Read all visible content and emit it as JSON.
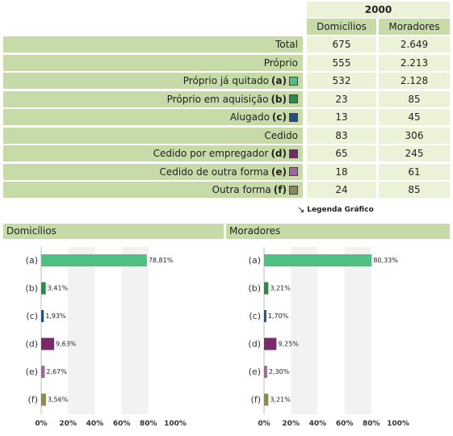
{
  "table": {
    "year": "2000",
    "columns": [
      "Domicílios",
      "Moradores"
    ],
    "rows": [
      {
        "label": "Total",
        "tag": "",
        "swatch": "",
        "domicilios": "675",
        "moradores": "2.649"
      },
      {
        "label": "Próprio",
        "tag": "",
        "swatch": "",
        "domicilios": "555",
        "moradores": "2.213"
      },
      {
        "label": "Próprio já quitado",
        "tag": "(a)",
        "swatch": "#4fc081",
        "domicilios": "532",
        "moradores": "2.128"
      },
      {
        "label": "Próprio em aquisição",
        "tag": "(b)",
        "swatch": "#2a8a4a",
        "domicilios": "23",
        "moradores": "85"
      },
      {
        "label": "Alugado",
        "tag": "(c)",
        "swatch": "#1f4f8f",
        "domicilios": "13",
        "moradores": "45"
      },
      {
        "label": "Cedido",
        "tag": "",
        "swatch": "",
        "domicilios": "83",
        "moradores": "306"
      },
      {
        "label": "Cedido por empregador",
        "tag": "(d)",
        "swatch": "#7a2868",
        "domicilios": "65",
        "moradores": "245"
      },
      {
        "label": "Cedido de outra forma",
        "tag": "(e)",
        "swatch": "#a0659a",
        "domicilios": "18",
        "moradores": "61"
      },
      {
        "label": "Outra forma",
        "tag": "(f)",
        "swatch": "#8c8c4a",
        "domicilios": "24",
        "moradores": "85"
      }
    ]
  },
  "legend_link": {
    "label": "Legenda Gráfico",
    "icon": "arrow-down-right-icon"
  },
  "chart_data": [
    {
      "type": "bar",
      "orientation": "horizontal",
      "title": "Domicílios",
      "categories": [
        "(a)",
        "(b)",
        "(c)",
        "(d)",
        "(e)",
        "(f)"
      ],
      "values": [
        78.81,
        3.41,
        1.93,
        9.63,
        2.67,
        3.56
      ],
      "value_labels": [
        "78,81%",
        "3,41%",
        "1,93%",
        "9,63%",
        "2,67%",
        "3,56%"
      ],
      "colors": [
        "#4fc081",
        "#2a8a4a",
        "#1f4f8f",
        "#7a2868",
        "#a0659a",
        "#8c8c4a"
      ],
      "xlim": [
        0,
        100
      ],
      "xticks": [
        "0%",
        "20%",
        "40%",
        "60%",
        "80%",
        "100%"
      ]
    },
    {
      "type": "bar",
      "orientation": "horizontal",
      "title": "Moradores",
      "categories": [
        "(a)",
        "(b)",
        "(c)",
        "(d)",
        "(e)",
        "(f)"
      ],
      "values": [
        80.33,
        3.21,
        1.7,
        9.25,
        2.3,
        3.21
      ],
      "value_labels": [
        "80,33%",
        "3,21%",
        "1,70%",
        "9,25%",
        "2,30%",
        "3,21%"
      ],
      "colors": [
        "#4fc081",
        "#2a8a4a",
        "#1f4f8f",
        "#7a2868",
        "#a0659a",
        "#8c8c4a"
      ],
      "xlim": [
        0,
        100
      ],
      "xticks": [
        "0%",
        "20%",
        "40%",
        "60%",
        "80%",
        "100%"
      ]
    }
  ]
}
